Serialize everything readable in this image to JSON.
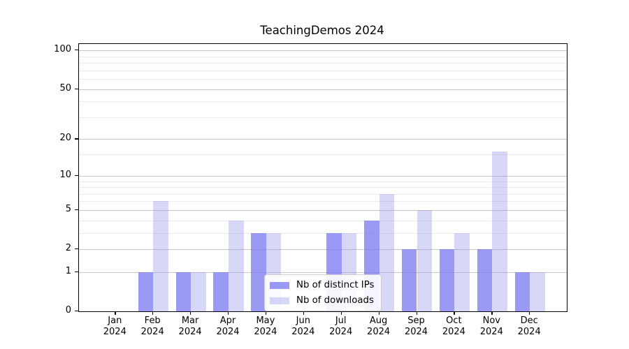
{
  "title": "TeachingDemos 2024",
  "legend": {
    "items": [
      {
        "label": "Nb of distinct IPs",
        "color": "rgba(120,120,240,0.75)"
      },
      {
        "label": "Nb of downloads",
        "color": "rgba(150,150,235,0.38)"
      }
    ]
  },
  "colors": {
    "distinct_ips_bar": "rgba(120,120,240,0.75)",
    "downloads_bar": "rgba(150,150,235,0.38)",
    "major_gridline": "#c6c6c6",
    "minor_gridline": "#ebebeb",
    "axis": "#000000",
    "legend_border": "#cccccc"
  },
  "chart_data": {
    "type": "bar",
    "title": "TeachingDemos 2024",
    "categories": [
      "Jan",
      "Feb",
      "Mar",
      "Apr",
      "May",
      "Jun",
      "Jul",
      "Aug",
      "Sep",
      "Oct",
      "Nov",
      "Dec"
    ],
    "x_year": "2024",
    "series": [
      {
        "name": "Nb of distinct IPs",
        "values": [
          0,
          1,
          1,
          1,
          3,
          0,
          3,
          4,
          2,
          2,
          2,
          1
        ],
        "color": "rgba(120,120,240,0.75)"
      },
      {
        "name": "Nb of downloads",
        "values": [
          0,
          6,
          1,
          4,
          3,
          0,
          3,
          7,
          5,
          3,
          16,
          1
        ],
        "color": "rgba(150,150,235,0.38)"
      }
    ],
    "y_scale": "log1p",
    "y_axis_major_ticks": [
      0,
      1,
      2,
      5,
      10,
      20,
      50,
      100
    ],
    "y_axis_minor_ticks": [
      3,
      4,
      6,
      7,
      8,
      9,
      15,
      30,
      40,
      60,
      70,
      80,
      90
    ],
    "ylim": [
      0,
      110
    ],
    "grid": true,
    "legend_position": "lower-center-right"
  }
}
